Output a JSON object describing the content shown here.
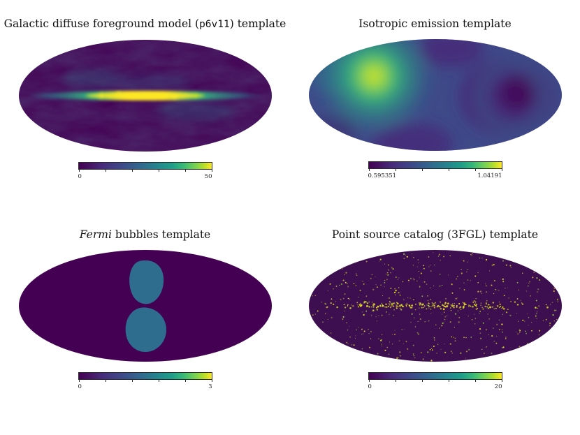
{
  "figure": {
    "background": "#ffffff",
    "colormap": {
      "name": "viridis",
      "stops": [
        "#440154",
        "#482878",
        "#3e4989",
        "#31688e",
        "#26828e",
        "#1f9e89",
        "#35b779",
        "#6ece58",
        "#b5de2b",
        "#fde725"
      ]
    }
  },
  "panels": [
    {
      "title_pre": "Galactic diffuse foreground model (",
      "title_special": "p6v11",
      "title_post": ") template",
      "cbar_min": "0",
      "cbar_max": "50"
    },
    {
      "title_pre": "Isotropic emission template",
      "title_special": "",
      "title_post": "",
      "cbar_min": "0.595351",
      "cbar_max": "1.04191"
    },
    {
      "title_pre": "",
      "title_special": "Fermi",
      "title_post": " bubbles template",
      "cbar_min": "0",
      "cbar_max": "3"
    },
    {
      "title_pre": "Point source catalog (3FGL) template",
      "title_special": "",
      "title_post": "",
      "cbar_min": "0",
      "cbar_max": "20"
    }
  ],
  "chart_data": [
    {
      "type": "heatmap",
      "projection": "mollweide",
      "title": "Galactic diffuse foreground model (p6v11) template",
      "colormap": "viridis",
      "colorbar_range": [
        0,
        50
      ],
      "colorbar_tick_labels": [
        "0",
        "50"
      ],
      "description": "All-sky Mollweide map, dark purple (~0) at high latitudes with mottled faint diffuse structure; bright yellow-green galactic plane stripe along the equator peaking near 50 at the galactic center."
    },
    {
      "type": "heatmap",
      "projection": "mollweide",
      "title": "Isotropic emission template",
      "colormap": "viridis",
      "colorbar_range": [
        0.595351,
        1.04191
      ],
      "colorbar_tick_labels": [
        "0.595351",
        "1.04191"
      ],
      "description": "Smooth large-scale exposure-like variation; bright yellow maximum blob in the upper-left quadrant (~1.04), dark purple minima on the right-center, top-middle and lower-center (~0.60), mid blue-teal elsewhere."
    },
    {
      "type": "heatmap",
      "projection": "mollweide",
      "title": "Fermi bubbles template",
      "colormap": "viridis",
      "colorbar_range": [
        0,
        3
      ],
      "colorbar_tick_labels": [
        "0",
        "3"
      ],
      "description": "Uniform dark-purple background at 0 with two teal lobes (the Fermi bubbles) just above and below the galactic center, roughly centered, value ~1.5 of 3."
    },
    {
      "type": "heatmap",
      "projection": "mollweide",
      "title": "Point source catalog (3FGL) template",
      "colormap": "viridis",
      "colorbar_range": [
        0,
        20
      ],
      "colorbar_tick_labels": [
        "0",
        "20"
      ],
      "description": "Dark purple background sprinkled with thousands of tiny bright yellow-green point sources, densest in a band along the galactic plane."
    }
  ]
}
